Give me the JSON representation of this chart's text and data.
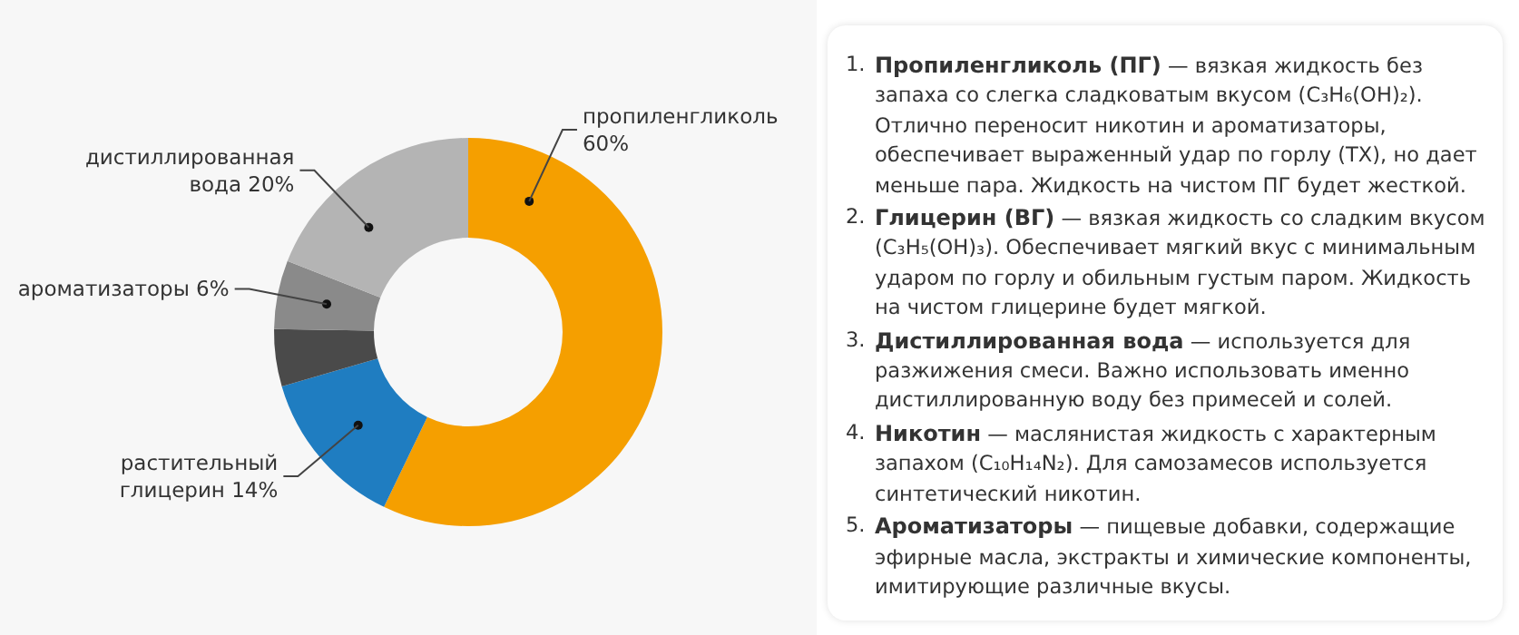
{
  "chart_data": [
    {
      "type": "donut",
      "categories": [
        "пропиленгликоль",
        "растительный глицерин",
        null,
        "ароматизаторы",
        "дистиллированная вода"
      ],
      "values": [
        60,
        14,
        5,
        6,
        20
      ],
      "value_labels": [
        "60%",
        "14%",
        null,
        "6%",
        "20%"
      ],
      "colors": [
        "#f59f00",
        "#1f7dc1",
        "#4a4a4a",
        "#8a8a8a",
        "#b4b4b4"
      ]
    },
    {
      "type": "other",
      "annotations": [
        "1. Пропиленгликоль (ПГ) — вязкая жидкость без запаха со слегка сладковатым вкусом (C₃H₆(OH)₂). Отлично переносит никотин и ароматизаторы, обеспечивает выраженный удар по горлу (ТХ), но дает меньше пара. Жидкость на чистом ПГ будет жесткой.",
        "2. Глицерин (ВГ) — вязкая жидкость со сладким вкусом (C₃H₅(OH)₃). Обеспечивает мягкий вкус с минимальным ударом по горлу и обильным густым паром. Жидкость на чистом глицерине будет мягкой.",
        "3. Дистиллированная вода — используется для разжижения смеси. Важно использовать именно дистиллированную воду без примесей и солей.",
        "4. Никотин — маслянистая жидкость с характерным запахом (C₁₀H₁₄N₂). Для самозамесов используется синтетический никотин.",
        "5. Ароматизаторы — пищевые добавки, содержащие эфирные масла, экстракты и химические компоненты, имитирующие различные вкусы."
      ]
    }
  ]
}
